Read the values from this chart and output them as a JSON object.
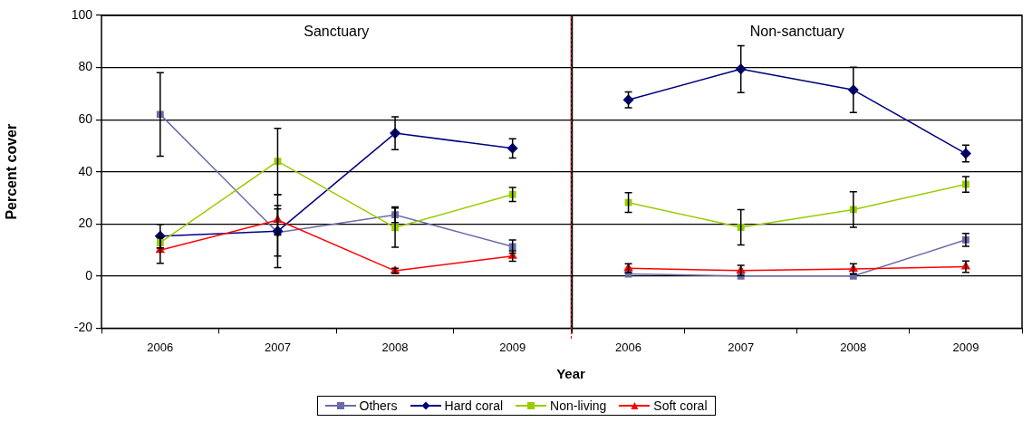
{
  "chart_data": [
    {
      "type": "line",
      "title": "Sanctuary",
      "ylabel": "Percent cover",
      "xlabel": "Year",
      "categories": [
        "2006",
        "2007",
        "2008",
        "2009"
      ],
      "ylim": [
        -20,
        100
      ],
      "yticks": [
        -20,
        0,
        20,
        40,
        60,
        80,
        100
      ],
      "grid": "y",
      "legend": "bottom",
      "series": [
        {
          "name": "Others",
          "color": "#6b6ba8",
          "marker": "square",
          "values": [
            62,
            16.7,
            23.5,
            11.3
          ],
          "errors": [
            16,
            9,
            3,
            2.5
          ]
        },
        {
          "name": "Hard coral",
          "color": "#000080",
          "marker": "diamond",
          "values": [
            15.3,
            17.2,
            54.8,
            49
          ],
          "errors": [
            4.5,
            14,
            6.3,
            3.7
          ]
        },
        {
          "name": "Non-living",
          "color": "#99cc00",
          "marker": "square",
          "values": [
            12.8,
            44,
            18.6,
            31.3
          ],
          "errors": [
            2,
            12.7,
            7.5,
            2.7
          ]
        },
        {
          "name": "Soft coral",
          "color": "#ff0000",
          "marker": "triangle",
          "values": [
            9.9,
            21.5,
            2,
            7.7
          ],
          "errors": [
            5,
            5.5,
            1,
            2
          ]
        }
      ]
    },
    {
      "type": "line",
      "title": "Non-sanctuary",
      "categories": [
        "2006",
        "2007",
        "2008",
        "2009"
      ],
      "ylim": [
        -20,
        100
      ],
      "yticks": [
        -20,
        0,
        20,
        40,
        60,
        80,
        100
      ],
      "grid": "y",
      "tick_labels": "x",
      "series": [
        {
          "color": "#6b6ba8",
          "marker": "square",
          "values": [
            0.8,
            0,
            0,
            13.9
          ],
          "errors": [
            null,
            null,
            null,
            2.5
          ]
        },
        {
          "color": "#000080",
          "marker": "diamond",
          "values": [
            67.6,
            79.4,
            71.4,
            47
          ],
          "errors": [
            3,
            9,
            8.7,
            3.2
          ]
        },
        {
          "color": "#99cc00",
          "marker": "square",
          "values": [
            28.2,
            18.7,
            25.5,
            35.2
          ],
          "errors": [
            3.8,
            6.8,
            6.8,
            3
          ]
        },
        {
          "color": "#ff0000",
          "marker": "triangle",
          "values": [
            3,
            2.1,
            2.7,
            3.6
          ],
          "errors": [
            1.7,
            2,
            2,
            2.2
          ]
        }
      ]
    }
  ]
}
